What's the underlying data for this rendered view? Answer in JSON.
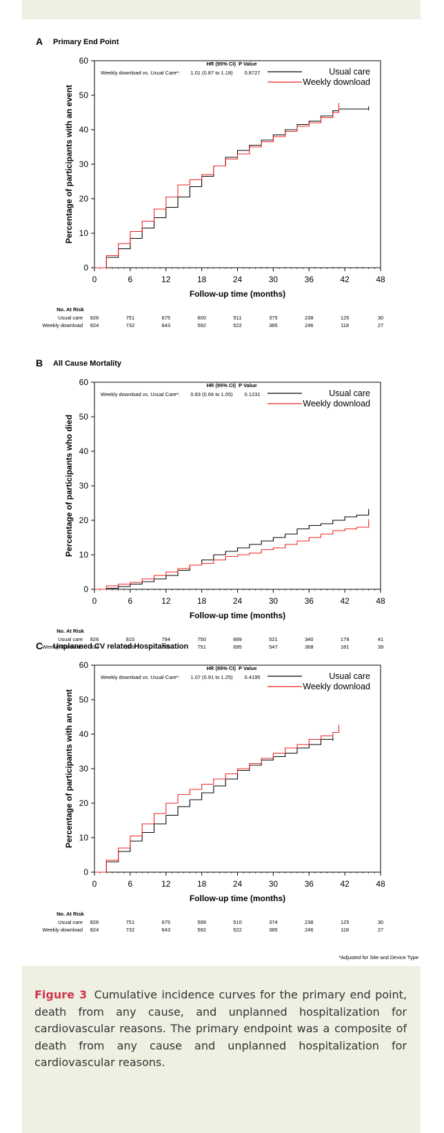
{
  "figure": {
    "label": "Figure 3",
    "caption": "Cumulative incidence curves for the primary end point, death from any cause, and unplanned hospitalization for cardiovascular reasons. The primary endpoint was a composite of death from any cause and unplanned hospitalization for cardiovascular reasons.",
    "footnote": "*Adjusted for Site and Device Type"
  },
  "colors": {
    "usual_care": "#000000",
    "weekly_download": "#ee2222",
    "background": "#efefe2",
    "caption_label": "#d0354b"
  },
  "chart_data": [
    {
      "type": "line",
      "letter": "A",
      "title": "Primary End Point",
      "xlabel": "Follow-up time (months)",
      "ylabel": "Percentage of participants with an event",
      "xlim": [
        0,
        48
      ],
      "ylim": [
        0,
        60
      ],
      "xticks": [
        "0",
        "6",
        "12",
        "18",
        "24",
        "30",
        "36",
        "42",
        "48"
      ],
      "yticks": [
        "0",
        "10",
        "20",
        "30",
        "40",
        "50",
        "60"
      ],
      "legend_position": "top-right",
      "hr": {
        "header_hr": "HR (95% CI)",
        "header_p": "P Value",
        "label": "Weekly download vs. Usual Care*:",
        "value": "1.01 (0.87 to 1.18)",
        "p": "0.8727"
      },
      "series": [
        {
          "name": "Usual care",
          "x": [
            0,
            2,
            4,
            6,
            8,
            10,
            12,
            14,
            16,
            18,
            20,
            22,
            24,
            26,
            28,
            30,
            32,
            34,
            36,
            38,
            40,
            41,
            46
          ],
          "y": [
            0,
            3,
            5.5,
            8.5,
            11.5,
            14.5,
            17.5,
            20.5,
            23.5,
            26.5,
            29.5,
            32,
            34,
            35.5,
            37,
            38.5,
            40,
            41.5,
            42.5,
            44,
            45.5,
            46,
            46
          ]
        },
        {
          "name": "Weekly download",
          "x": [
            0,
            2,
            4,
            6,
            8,
            10,
            12,
            14,
            16,
            18,
            20,
            22,
            24,
            26,
            28,
            30,
            32,
            34,
            36,
            38,
            40,
            41
          ],
          "y": [
            0,
            3.5,
            7,
            10.5,
            13.5,
            17,
            20.5,
            24,
            25.5,
            27,
            29.5,
            31.5,
            33,
            35,
            36.5,
            38,
            39.5,
            41,
            42,
            43.5,
            45,
            47
          ]
        }
      ],
      "at_risk": {
        "label": "No. At Risk",
        "rows": [
          {
            "name": "Usual care",
            "values": [
              "826",
              "751",
              "675",
              "600",
              "511",
              "375",
              "238",
              "125",
              "30"
            ]
          },
          {
            "name": "Weekly download",
            "values": [
              "824",
              "732",
              "643",
              "592",
              "522",
              "385",
              "246",
              "118",
              "27"
            ]
          }
        ]
      }
    },
    {
      "type": "line",
      "letter": "B",
      "title": "All Cause Mortality",
      "xlabel": "Follow-up time (months)",
      "ylabel": "Percentage of participants who died",
      "xlim": [
        0,
        48
      ],
      "ylim": [
        0,
        60
      ],
      "xticks": [
        "0",
        "6",
        "12",
        "18",
        "24",
        "30",
        "36",
        "42",
        "48"
      ],
      "yticks": [
        "0",
        "10",
        "20",
        "30",
        "40",
        "50",
        "60"
      ],
      "legend_position": "top-right",
      "hr": {
        "header_hr": "HR (95% CI)",
        "header_p": "P Value",
        "label": "Weekly download vs. Usual Care*:",
        "value": "0.83 (0.66 to 1.05)",
        "p": "0.1231"
      },
      "series": [
        {
          "name": "Usual care",
          "x": [
            0,
            2,
            4,
            6,
            8,
            10,
            12,
            14,
            16,
            18,
            20,
            22,
            24,
            26,
            28,
            30,
            32,
            34,
            36,
            38,
            40,
            42,
            44,
            46
          ],
          "y": [
            0,
            0.3,
            0.8,
            1.5,
            2.2,
            3,
            4,
            5.5,
            7,
            8.5,
            10,
            11,
            12,
            13,
            14,
            15,
            16,
            17.5,
            18.5,
            19,
            20,
            21,
            21.5,
            22.5
          ]
        },
        {
          "name": "Weekly download",
          "x": [
            0,
            2,
            4,
            6,
            8,
            10,
            12,
            14,
            16,
            18,
            20,
            22,
            24,
            26,
            28,
            30,
            32,
            34,
            36,
            38,
            40,
            42,
            44,
            46
          ],
          "y": [
            0,
            1,
            1.5,
            2,
            3,
            4,
            5,
            6,
            7,
            7.5,
            8.5,
            9.5,
            10,
            10.5,
            11.5,
            12,
            13,
            14,
            15,
            16,
            17,
            17.5,
            18,
            19.5
          ]
        }
      ],
      "at_risk": {
        "label": "No. At Risk",
        "rows": [
          {
            "name": "Usual care",
            "values": [
              "826",
              "815",
              "794",
              "750",
              "689",
              "521",
              "340",
              "179",
              "41"
            ]
          },
          {
            "name": "Weekly download",
            "values": [
              "824",
              "806",
              "776",
              "751",
              "695",
              "547",
              "368",
              "181",
              "39"
            ]
          }
        ]
      }
    },
    {
      "type": "line",
      "letter": "C",
      "title": "Unplanned CV related Hospitalisation",
      "xlabel": "Follow-up time (months)",
      "ylabel": "Percentage of participants with an event",
      "xlim": [
        0,
        48
      ],
      "ylim": [
        0,
        60
      ],
      "xticks": [
        "0",
        "6",
        "12",
        "18",
        "24",
        "30",
        "36",
        "42",
        "48"
      ],
      "yticks": [
        "0",
        "10",
        "20",
        "30",
        "40",
        "50",
        "60"
      ],
      "legend_position": "top-right",
      "hr": {
        "header_hr": "HR (95% CI)",
        "header_p": "P Value",
        "label": "Weekly download vs. Usual Care*:",
        "value": "1.07 (0.91 to 1.25)",
        "p": "0.4195"
      },
      "series": [
        {
          "name": "Usual care",
          "x": [
            0,
            2,
            4,
            6,
            8,
            10,
            12,
            14,
            16,
            18,
            20,
            22,
            24,
            26,
            28,
            30,
            32,
            34,
            36,
            38,
            40
          ],
          "y": [
            0,
            3,
            6,
            9,
            11.5,
            14,
            16.5,
            19,
            21,
            23,
            25,
            27,
            29.5,
            31,
            32.5,
            33.5,
            34.5,
            36,
            37,
            38.5,
            38.5
          ]
        },
        {
          "name": "Weekly download",
          "x": [
            0,
            2,
            4,
            6,
            8,
            10,
            12,
            14,
            16,
            18,
            20,
            22,
            24,
            26,
            28,
            30,
            32,
            34,
            36,
            38,
            40,
            41
          ],
          "y": [
            0,
            3.5,
            7,
            10.5,
            14,
            17,
            20,
            22.5,
            24,
            25.5,
            27,
            28.5,
            30,
            31.5,
            33,
            34.5,
            36,
            37,
            38.5,
            39.5,
            40.5,
            42
          ]
        }
      ],
      "at_risk": {
        "label": "No. At Risk",
        "rows": [
          {
            "name": "Usual care",
            "values": [
              "826",
              "751",
              "675",
              "599",
              "510",
              "374",
              "238",
              "125",
              "30"
            ]
          },
          {
            "name": "Weekly download",
            "values": [
              "824",
              "732",
              "643",
              "592",
              "522",
              "385",
              "246",
              "118",
              "27"
            ]
          }
        ]
      }
    }
  ]
}
